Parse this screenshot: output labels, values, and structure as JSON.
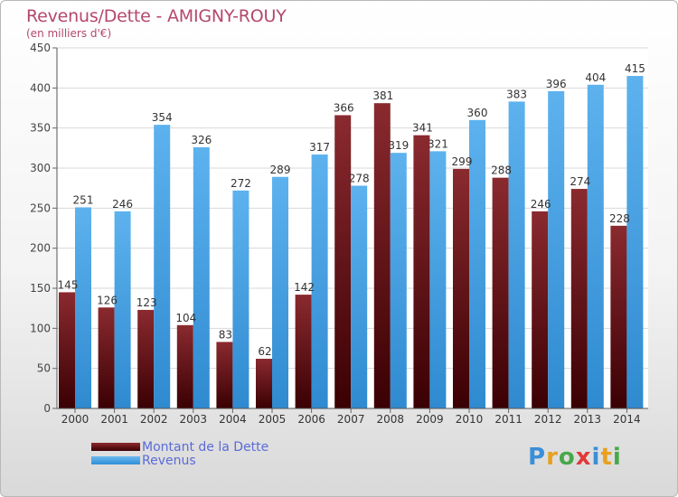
{
  "title": "Revenus/Dette - AMIGNY-ROUY",
  "subtitle": "(en milliers d'€)",
  "colors": {
    "debt": "#6a1519",
    "revenue": "#47a3e6",
    "title": "#b5476e",
    "legend_text": "#5a6bd8"
  },
  "legend": [
    {
      "label": "Montant de la Dette"
    },
    {
      "label": "Revenus"
    }
  ],
  "logo": {
    "letters": [
      {
        "char": "P",
        "color": "#3a8fd8"
      },
      {
        "char": "r",
        "color": "#e8a020"
      },
      {
        "char": "o",
        "color": "#48a848"
      },
      {
        "char": "x",
        "color": "#e03a3a"
      },
      {
        "char": "i",
        "color": "#3a8fd8"
      },
      {
        "char": "t",
        "color": "#e8a020"
      },
      {
        "char": "i",
        "color": "#48a848"
      }
    ]
  },
  "chart_data": {
    "type": "bar",
    "categories": [
      "2000",
      "2001",
      "2002",
      "2003",
      "2004",
      "2005",
      "2006",
      "2007",
      "2008",
      "2009",
      "2010",
      "2011",
      "2012",
      "2013",
      "2014"
    ],
    "series": [
      {
        "name": "Montant de la Dette",
        "values": [
          145,
          126,
          123,
          104,
          83,
          62,
          142,
          366,
          381,
          341,
          299,
          288,
          246,
          274,
          228
        ]
      },
      {
        "name": "Revenus",
        "values": [
          251,
          246,
          354,
          326,
          272,
          289,
          317,
          278,
          319,
          321,
          360,
          383,
          396,
          404,
          415
        ]
      }
    ],
    "ylim": [
      0,
      450
    ],
    "yticks": [
      0,
      50,
      100,
      150,
      200,
      250,
      300,
      350,
      400,
      450
    ],
    "grid": true
  }
}
